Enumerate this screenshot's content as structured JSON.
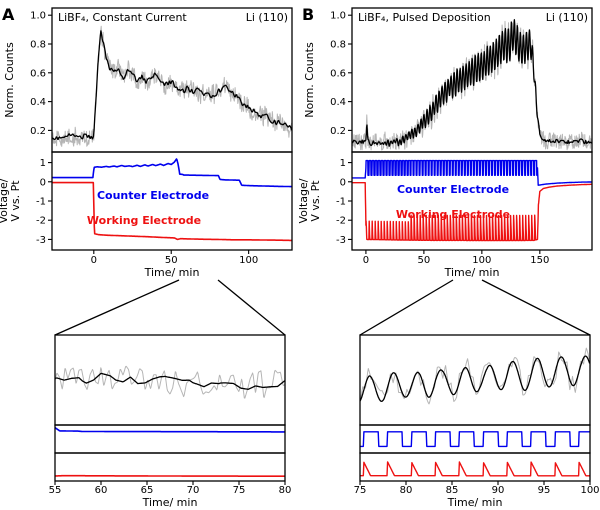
{
  "figure": {
    "counts_ylabel": "Norm. Counts",
    "voltage_ylabel_line1": "Voltage/",
    "voltage_ylabel_line2": "V vs. Pt",
    "background": "#ffffff",
    "colors": {
      "counter": "#0000ee",
      "working": "#ee1111",
      "raw": "#b5b5b5",
      "smooth": "#000000"
    }
  },
  "chart_data": [
    {
      "id": "main_a",
      "type": "line",
      "panel_letter": "A",
      "title": "LiBF₄, Constant Current",
      "sample": "Li (110)",
      "xlabel": "Time/ min",
      "xlim": [
        -27,
        128
      ],
      "xticks": [
        0,
        50,
        100
      ],
      "counts": {
        "ylim": [
          0.05,
          1.05
        ],
        "yticks": [
          "1.0",
          "0.8",
          "0.6",
          "0.4",
          "0.2"
        ],
        "base_keypoints": [
          [
            -27,
            0.16
          ],
          [
            -20,
            0.14
          ],
          [
            -15,
            0.17
          ],
          [
            -10,
            0.15
          ],
          [
            -5,
            0.16
          ],
          [
            -1,
            0.15
          ],
          [
            0,
            0.18
          ],
          [
            1.5,
            0.45
          ],
          [
            3,
            0.72
          ],
          [
            4.5,
            0.88
          ],
          [
            6,
            0.82
          ],
          [
            8,
            0.7
          ],
          [
            10,
            0.63
          ],
          [
            13,
            0.6
          ],
          [
            16,
            0.63
          ],
          [
            19,
            0.57
          ],
          [
            22,
            0.62
          ],
          [
            25,
            0.59
          ],
          [
            28,
            0.54
          ],
          [
            31,
            0.58
          ],
          [
            34,
            0.53
          ],
          [
            37,
            0.56
          ],
          [
            40,
            0.59
          ],
          [
            43,
            0.55
          ],
          [
            46,
            0.51
          ],
          [
            49,
            0.54
          ],
          [
            52,
            0.52
          ],
          [
            55,
            0.49
          ],
          [
            58,
            0.47
          ],
          [
            61,
            0.5
          ],
          [
            64,
            0.46
          ],
          [
            67,
            0.48
          ],
          [
            70,
            0.45
          ],
          [
            73,
            0.47
          ],
          [
            76,
            0.44
          ],
          [
            79,
            0.46
          ],
          [
            82,
            0.48
          ],
          [
            85,
            0.51
          ],
          [
            88,
            0.48
          ],
          [
            91,
            0.45
          ],
          [
            94,
            0.41
          ],
          [
            97,
            0.38
          ],
          [
            100,
            0.36
          ],
          [
            103,
            0.34
          ],
          [
            106,
            0.31
          ],
          [
            109,
            0.29
          ],
          [
            112,
            0.3
          ],
          [
            115,
            0.27
          ],
          [
            118,
            0.25
          ],
          [
            121,
            0.26
          ],
          [
            124,
            0.23
          ],
          [
            128,
            0.21
          ]
        ],
        "series": [
          {
            "name": "raw-counts-a",
            "color": "#b5b5b5",
            "width": 1,
            "dt": 0.25,
            "noise": {
              "amp": 0.075,
              "dx": 0.3,
              "seed": 11
            }
          },
          {
            "name": "smoothed-counts-a",
            "color": "#000000",
            "width": 1.3,
            "dt": 0.4,
            "noise": {
              "amp": 0.02,
              "dx": 0.8,
              "seed": 4
            }
          }
        ]
      },
      "voltage": {
        "ylim": [
          -3.55,
          1.55
        ],
        "yticks": [
          "1",
          "0",
          "-1",
          "-2",
          "-3"
        ],
        "series": [
          {
            "name": "counter-electrode-a",
            "color": "#0000ee",
            "width": 1.6,
            "dt": 0.3,
            "keypoints": [
              [
                -27,
                0.22
              ],
              [
                -10,
                0.22
              ],
              [
                -0.6,
                0.22
              ],
              [
                0.2,
                0.75
              ],
              [
                2,
                0.78
              ],
              [
                5,
                0.76
              ],
              [
                8,
                0.8
              ],
              [
                10,
                0.77
              ],
              [
                13,
                0.82
              ],
              [
                15,
                0.78
              ],
              [
                18,
                0.85
              ],
              [
                20,
                0.8
              ],
              [
                23,
                0.83
              ],
              [
                25,
                0.79
              ],
              [
                28,
                0.86
              ],
              [
                30,
                0.8
              ],
              [
                33,
                0.88
              ],
              [
                35,
                0.82
              ],
              [
                38,
                0.9
              ],
              [
                40,
                0.84
              ],
              [
                43,
                0.92
              ],
              [
                45,
                0.85
              ],
              [
                48,
                0.95
              ],
              [
                50,
                0.9
              ],
              [
                52,
                1.02
              ],
              [
                53.5,
                1.2
              ],
              [
                54.5,
                0.9
              ],
              [
                55.5,
                0.4
              ],
              [
                57.5,
                0.38
              ],
              [
                58,
                0.35
              ],
              [
                62,
                0.345
              ],
              [
                66,
                0.34
              ],
              [
                70,
                0.335
              ],
              [
                74,
                0.33
              ],
              [
                78,
                0.325
              ],
              [
                80.5,
                0.32
              ],
              [
                81.5,
                0.12
              ],
              [
                85,
                0.1
              ],
              [
                90,
                0.09
              ],
              [
                94,
                0.08
              ],
              [
                95.5,
                -0.18
              ],
              [
                100,
                -0.2
              ],
              [
                105,
                -0.21
              ],
              [
                110,
                -0.22
              ],
              [
                115,
                -0.23
              ],
              [
                120,
                -0.24
              ],
              [
                128,
                -0.25
              ]
            ]
          },
          {
            "name": "working-electrode-a",
            "color": "#ee1111",
            "width": 1.6,
            "dt": 0.3,
            "keypoints": [
              [
                -27,
                -0.04
              ],
              [
                -5,
                -0.04
              ],
              [
                -0.3,
                -0.04
              ],
              [
                0.4,
                -2.7
              ],
              [
                3,
                -2.75
              ],
              [
                8,
                -2.78
              ],
              [
                15,
                -2.8
              ],
              [
                25,
                -2.83
              ],
              [
                35,
                -2.86
              ],
              [
                45,
                -2.9
              ],
              [
                52,
                -2.92
              ],
              [
                54,
                -3.0
              ],
              [
                56,
                -2.96
              ],
              [
                60,
                -2.97
              ],
              [
                70,
                -2.99
              ],
              [
                80,
                -3.0
              ],
              [
                90,
                -3.02
              ],
              [
                100,
                -3.02
              ],
              [
                110,
                -3.03
              ],
              [
                120,
                -3.04
              ],
              [
                128,
                -3.05
              ]
            ]
          }
        ],
        "annotations": [
          {
            "text": "Counter Electrode",
            "color": "#0000ee"
          },
          {
            "text": "Working Electrode",
            "color": "#ee1111"
          }
        ]
      }
    },
    {
      "id": "main_b",
      "type": "line",
      "panel_letter": "B",
      "title": "LiBF₄, Pulsed Deposition",
      "sample": "Li (110)",
      "xlabel": "Time/ min",
      "xlim": [
        -12,
        195
      ],
      "xticks": [
        0,
        50,
        100,
        150
      ],
      "counts": {
        "ylim": [
          0.05,
          1.05
        ],
        "yticks": [
          "1.0",
          "0.8",
          "0.6",
          "0.4",
          "0.2"
        ],
        "base_keypoints": [
          [
            -12,
            0.12
          ],
          [
            -5,
            0.12
          ],
          [
            -1,
            0.12
          ],
          [
            0,
            0.13
          ],
          [
            0.8,
            0.26
          ],
          [
            1.6,
            0.14
          ],
          [
            4,
            0.11
          ],
          [
            8,
            0.12
          ],
          [
            12,
            0.11
          ],
          [
            16,
            0.12
          ],
          [
            20,
            0.11
          ],
          [
            24,
            0.12
          ],
          [
            28,
            0.12
          ],
          [
            32,
            0.13
          ],
          [
            36,
            0.15
          ],
          [
            40,
            0.17
          ],
          [
            44,
            0.2
          ],
          [
            48,
            0.24
          ],
          [
            52,
            0.28
          ],
          [
            56,
            0.32
          ],
          [
            60,
            0.37
          ],
          [
            64,
            0.42
          ],
          [
            68,
            0.46
          ],
          [
            72,
            0.5
          ],
          [
            76,
            0.52
          ],
          [
            80,
            0.54
          ],
          [
            84,
            0.57
          ],
          [
            88,
            0.59
          ],
          [
            92,
            0.61
          ],
          [
            96,
            0.63
          ],
          [
            100,
            0.65
          ],
          [
            104,
            0.67
          ],
          [
            108,
            0.69
          ],
          [
            112,
            0.72
          ],
          [
            116,
            0.76
          ],
          [
            120,
            0.8
          ],
          [
            124,
            0.78
          ],
          [
            127,
            0.88
          ],
          [
            130,
            0.82
          ],
          [
            133,
            0.78
          ],
          [
            136,
            0.75
          ],
          [
            139,
            0.78
          ],
          [
            142,
            0.8
          ],
          [
            144,
            0.7
          ],
          [
            146,
            0.5
          ],
          [
            148,
            0.3
          ],
          [
            150,
            0.17
          ],
          [
            153,
            0.13
          ],
          [
            157,
            0.12
          ],
          [
            162,
            0.13
          ],
          [
            168,
            0.12
          ],
          [
            175,
            0.12
          ],
          [
            182,
            0.13
          ],
          [
            190,
            0.12
          ],
          [
            195,
            0.12
          ]
        ],
        "osc": {
          "period": 2.6,
          "t0": 0,
          "t1": 148,
          "amp": [
            [
              0,
              0
            ],
            [
              20,
              0.01
            ],
            [
              35,
              0.02
            ],
            [
              50,
              0.045
            ],
            [
              65,
              0.065
            ],
            [
              80,
              0.085
            ],
            [
              95,
              0.095
            ],
            [
              110,
              0.105
            ],
            [
              125,
              0.115
            ],
            [
              140,
              0.105
            ],
            [
              145,
              0.06
            ],
            [
              148,
              0.02
            ],
            [
              150,
              0
            ]
          ]
        },
        "series": [
          {
            "name": "raw-counts-b",
            "color": "#b5b5b5",
            "width": 1,
            "dt": 0.25,
            "noise": {
              "amp": 0.065,
              "dx": 0.3,
              "seed": 21
            }
          },
          {
            "name": "smoothed-counts-b",
            "color": "#000000",
            "width": 1.3,
            "dt": 0.3,
            "noise": {
              "amp": 0.015,
              "dx": 0.8,
              "seed": 5
            }
          }
        ]
      },
      "voltage": {
        "ylim": [
          -3.55,
          1.55
        ],
        "yticks": [
          "1",
          "0",
          "-1",
          "-2",
          "-3"
        ],
        "series": [
          {
            "name": "counter-electrode-b",
            "color": "#0000ee",
            "width": 1.4,
            "dt": 0.2,
            "square": {
              "period": 2.6,
              "duty": 0.62,
              "amp": 0.38,
              "t0": 0,
              "t1": 148
            },
            "keypoints": [
              [
                -12,
                0.2
              ],
              [
                -0.6,
                0.2
              ],
              [
                0,
                0.72
              ],
              [
                148,
                0.72
              ],
              [
                148.6,
                -0.18
              ],
              [
                155,
                -0.12
              ],
              [
                165,
                -0.07
              ],
              [
                175,
                -0.04
              ],
              [
                185,
                -0.02
              ],
              [
                195,
                -0.01
              ]
            ]
          },
          {
            "name": "working-electrode-b",
            "color": "#ee1111",
            "width": 1.4,
            "dt": 0.2,
            "spikes": {
              "period": 2.6,
              "decay": 0.75,
              "amp": 1.3,
              "t0": 0,
              "t1": 148
            },
            "keypoints": [
              [
                -12,
                -0.05
              ],
              [
                -0.6,
                -0.05
              ],
              [
                0.2,
                -3.0
              ],
              [
                20,
                -3.02
              ],
              [
                40,
                -3.04
              ],
              [
                60,
                -3.05
              ],
              [
                80,
                -3.05
              ],
              [
                100,
                -3.06
              ],
              [
                120,
                -3.06
              ],
              [
                145,
                -3.05
              ],
              [
                148,
                -3.0
              ],
              [
                148.8,
                -1.2
              ],
              [
                150,
                -0.5
              ],
              [
                153,
                -0.35
              ],
              [
                158,
                -0.28
              ],
              [
                165,
                -0.22
              ],
              [
                175,
                -0.18
              ],
              [
                185,
                -0.15
              ],
              [
                195,
                -0.13
              ]
            ]
          }
        ],
        "annotations": [
          {
            "text": "Counter Electrode",
            "color": "#0000ee"
          },
          {
            "text": "Working Electrode",
            "color": "#ee1111"
          }
        ]
      }
    },
    {
      "id": "zoom_a",
      "type": "line",
      "source": "main_a",
      "xlabel": "Time/ min",
      "xlim": [
        55,
        80
      ],
      "xticks": [
        55,
        60,
        65,
        70,
        75,
        80
      ],
      "counts_ylim": [
        0.24,
        0.71
      ],
      "counter_ylim": [
        -1.3,
        0.85
      ],
      "working_ylim": [
        -3.35,
        -1.3
      ],
      "dt": 0.06
    },
    {
      "id": "zoom_b",
      "type": "line",
      "source": "main_b",
      "xlabel": "Time/ min",
      "xlim": [
        75,
        100
      ],
      "xticks": [
        75,
        80,
        85,
        90,
        95,
        100
      ],
      "counts_ylim": [
        0.28,
        0.88
      ],
      "counter_ylim": [
        0.0,
        1.45
      ],
      "working_ylim": [
        -3.55,
        -0.9
      ],
      "dt": 0.06
    }
  ]
}
